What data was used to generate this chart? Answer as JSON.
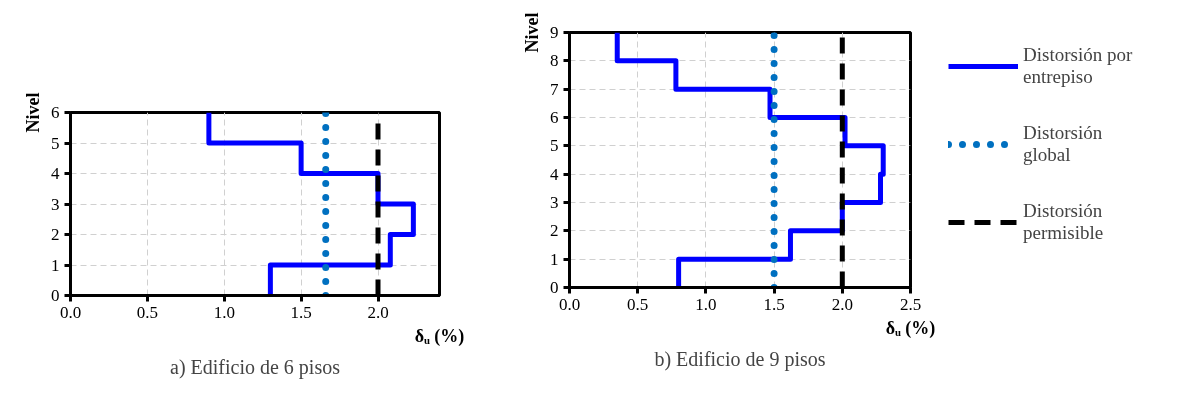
{
  "chart_data": [
    {
      "type": "line",
      "title": "a) Edificio de 6 pisos",
      "xlabel": "δᵤ (%)",
      "ylabel": "Nivel",
      "xlim": [
        0,
        2.4
      ],
      "xticks": [
        {
          "value": 0,
          "label": "0.0"
        },
        {
          "value": 0.5,
          "label": "0.5"
        },
        {
          "value": 1,
          "label": "1.0"
        },
        {
          "value": 1.5,
          "label": "1.5"
        },
        {
          "value": 2,
          "label": "2.0"
        }
      ],
      "ylim": [
        0,
        6
      ],
      "yticks": [
        0,
        1,
        2,
        3,
        4,
        5,
        6
      ],
      "grid": true,
      "legend": false,
      "series": [
        {
          "color": "#0000ff",
          "line_style": "solid",
          "x": [
            1.3,
            1.3,
            2.08,
            2.08,
            2.23,
            2.23,
            2.0,
            2.0,
            1.5,
            1.5,
            0.9,
            0.9
          ],
          "values": [
            0,
            1,
            1,
            2,
            2,
            3,
            3,
            4,
            4,
            5,
            5,
            6
          ]
        },
        {
          "color": "#0070c0",
          "line_style": "dotted",
          "x": [
            1.66,
            1.66
          ],
          "values": [
            0,
            6
          ]
        },
        {
          "color": "#000000",
          "line_style": "dashed",
          "x": [
            2.0,
            2.0
          ],
          "values": [
            0,
            6
          ]
        }
      ]
    },
    {
      "type": "line",
      "title": "b) Edificio de 9 pisos",
      "xlabel": "δᵤ (%)",
      "ylabel": "Nivel",
      "xlim": [
        0,
        2.5
      ],
      "xticks": [
        {
          "value": 0,
          "label": "0.0"
        },
        {
          "value": 0.5,
          "label": "0.5"
        },
        {
          "value": 1,
          "label": "1.0"
        },
        {
          "value": 1.5,
          "label": "1.5"
        },
        {
          "value": 2,
          "label": "2.0"
        },
        {
          "value": 2.5,
          "label": "2.5"
        }
      ],
      "ylim": [
        0,
        9
      ],
      "yticks": [
        0,
        1,
        2,
        3,
        4,
        5,
        6,
        7,
        8,
        9
      ],
      "grid": true,
      "legend": "right",
      "series": [
        {
          "name": "Distorsión por entrepiso",
          "color": "#0000ff",
          "line_style": "solid",
          "x": [
            0.8,
            0.8,
            1.62,
            1.62,
            2.0,
            2.0,
            2.28,
            2.28,
            2.3,
            2.3,
            2.02,
            2.02,
            1.47,
            1.47,
            0.78,
            0.78,
            0.35,
            0.35
          ],
          "values": [
            0,
            1,
            1,
            2,
            2,
            3,
            3,
            4,
            4,
            5,
            5,
            6,
            6,
            7,
            7,
            8,
            8,
            9
          ]
        },
        {
          "name": "Distorsión global",
          "color": "#0070c0",
          "line_style": "dotted",
          "x": [
            1.5,
            1.5
          ],
          "values": [
            0,
            9
          ]
        },
        {
          "name": "Distorsión permisible",
          "color": "#000000",
          "line_style": "dashed",
          "x": [
            2.0,
            2.0
          ],
          "values": [
            0,
            9
          ]
        }
      ]
    }
  ]
}
